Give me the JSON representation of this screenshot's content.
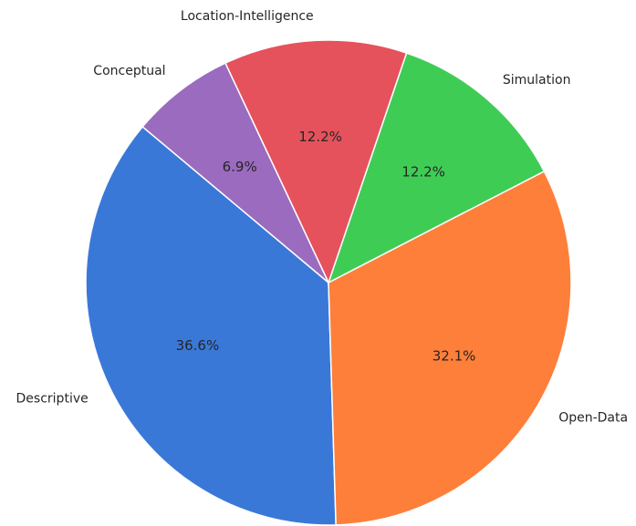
{
  "chart_data": {
    "type": "pie",
    "categories": [
      "Descriptive",
      "Open-Data",
      "Simulation",
      "Location-Intelligence",
      "Conceptual"
    ],
    "values": [
      36.6,
      32.1,
      12.2,
      12.2,
      6.9
    ],
    "value_labels": [
      "36.6%",
      "32.1%",
      "12.2%",
      "12.2%",
      "6.9%"
    ],
    "colors": [
      "#3a78d8",
      "#fd7f3a",
      "#3fcc55",
      "#e5525c",
      "#9b6bbf"
    ],
    "startangle": 140,
    "counterclock": true
  }
}
